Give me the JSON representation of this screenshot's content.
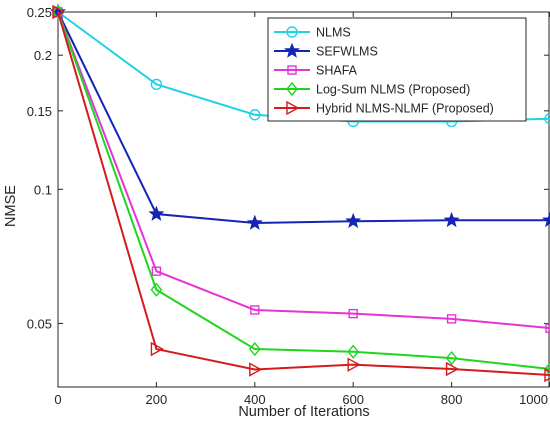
{
  "chart_data": {
    "type": "line",
    "title": "",
    "xlabel": "Number of Iterations",
    "ylabel": "NMSE",
    "xlim": [
      0,
      1000
    ],
    "ylim": [
      0.036,
      0.25
    ],
    "x_ticks": [
      0,
      200,
      400,
      600,
      800,
      1000
    ],
    "y_ticks": [
      0.05,
      0.1,
      0.15,
      0.2,
      0.25
    ],
    "x_tick_labels": [
      "0",
      "200",
      "400",
      "600",
      "800",
      "1000"
    ],
    "y_tick_labels": [
      "0.05",
      "0.1",
      "0.15",
      "0.2",
      "0.25"
    ],
    "x": [
      0,
      200,
      400,
      600,
      800,
      1000
    ],
    "grid": false,
    "legend_position": "top-right",
    "series": [
      {
        "name": "NLMS",
        "color": "#1fd3e6",
        "marker": "circle",
        "values": [
          0.25,
          0.172,
          0.147,
          0.142,
          0.142,
          0.144
        ]
      },
      {
        "name": "SEFWLMS",
        "color": "#1424b4",
        "marker": "star",
        "values": [
          0.25,
          0.088,
          0.084,
          0.0848,
          0.0852,
          0.0852
        ]
      },
      {
        "name": "SHAFA",
        "color": "#e633d6",
        "marker": "square",
        "values": [
          0.25,
          0.0655,
          0.0536,
          0.0526,
          0.0512,
          0.0488
        ]
      },
      {
        "name": "Log-Sum NLMS (Proposed)",
        "color": "#1ed61e",
        "marker": "diamond",
        "values": [
          0.25,
          0.0595,
          0.0438,
          0.0432,
          0.0418,
          0.0395
        ]
      },
      {
        "name": "Hybrid NLMS-NLMF (Proposed)",
        "color": "#d61a1a",
        "marker": "triangle-right",
        "values": [
          0.25,
          0.0438,
          0.0394,
          0.0404,
          0.0395,
          0.0383
        ]
      }
    ]
  }
}
